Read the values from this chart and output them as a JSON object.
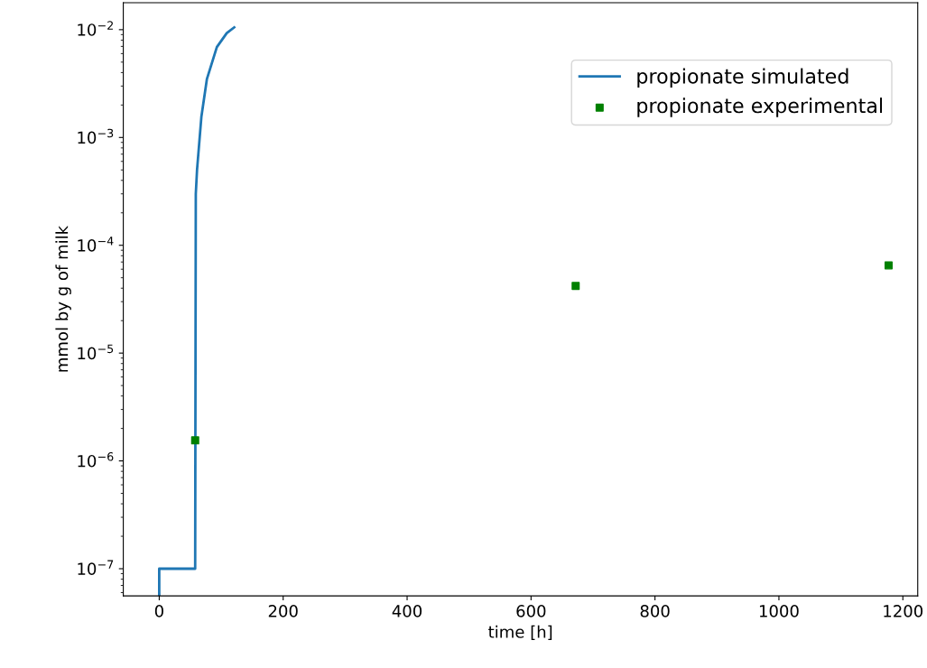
{
  "chart_data": {
    "type": "line",
    "xlabel": "time [h]",
    "ylabel": "mmol by g of milk",
    "log": "y",
    "xlim": [
      -58,
      1224
    ],
    "xticks": [
      0,
      200,
      400,
      600,
      800,
      1000,
      1200
    ],
    "ylim": [
      5.6e-08,
      0.0178
    ],
    "yticks": [
      {
        "value": 1e-07,
        "label": "10$^{−7}$"
      },
      {
        "value": 1e-06,
        "label": "10$^{−6}$"
      },
      {
        "value": 1e-05,
        "label": "10$^{−5}$"
      },
      {
        "value": 0.0001,
        "label": "10$^{−4}$"
      },
      {
        "value": 0.001,
        "label": "10$^{−3}$"
      },
      {
        "value": 0.01,
        "label": "10$^{−2}$"
      }
    ],
    "legend": "top right",
    "grid": false,
    "series": [
      {
        "name": "propionate simulated",
        "color": "#1f77b4",
        "x": [
          0,
          0,
          58,
          59,
          61,
          68,
          77,
          93,
          109,
          121
        ],
        "values": [
          5.6e-08,
          1e-07,
          1e-07,
          0.0003,
          0.0005,
          0.00155,
          0.0035,
          0.0069,
          0.0093,
          0.0105
        ]
      },
      {
        "name": "propionate experimental",
        "type": "scatter",
        "marker": "square",
        "color": "#008000",
        "x": [
          58,
          672,
          1177
        ],
        "values": [
          1.55e-06,
          4.2e-05,
          6.5e-05
        ]
      }
    ]
  }
}
